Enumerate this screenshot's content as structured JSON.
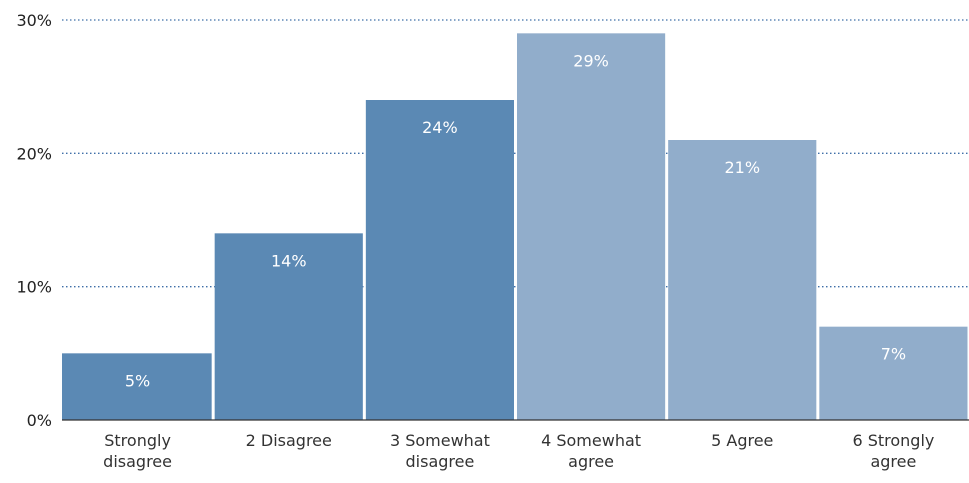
{
  "chart_data": {
    "type": "bar",
    "categories": [
      [
        "Strongly",
        "disagree"
      ],
      [
        "2 Disagree"
      ],
      [
        "3 Somewhat",
        "disagree"
      ],
      [
        "4 Somewhat",
        "agree"
      ],
      [
        "5 Agree"
      ],
      [
        "6 Strongly",
        "agree"
      ]
    ],
    "values": [
      5,
      14,
      24,
      29,
      21,
      7
    ],
    "data_labels": [
      "5%",
      "14%",
      "24%",
      "29%",
      "21%",
      "7%"
    ],
    "bar_colors": [
      "#5b89b4",
      "#5b89b4",
      "#5b89b4",
      "#91adcb",
      "#91adcb",
      "#91adcb"
    ],
    "ylim": [
      0,
      30
    ],
    "y_ticks": [
      0,
      10,
      20,
      30
    ],
    "y_tick_labels": [
      "0%",
      "10%",
      "20%",
      "30%"
    ],
    "grid": true,
    "grid_style": "dotted",
    "grid_color": "#3f6fa8",
    "title": "",
    "xlabel": "",
    "ylabel": ""
  }
}
